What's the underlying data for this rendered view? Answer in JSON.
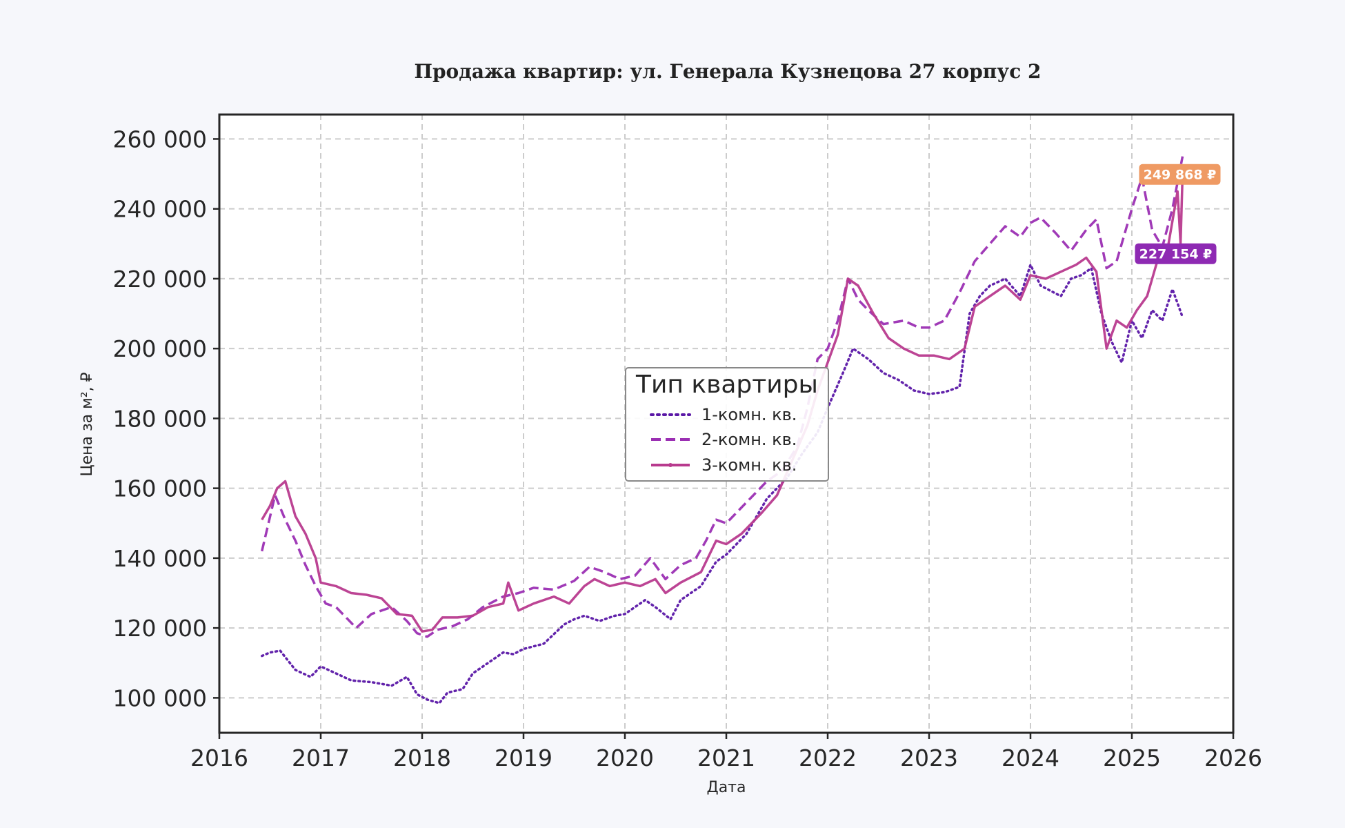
{
  "chart_data": {
    "type": "line",
    "title": "Продажа квартир: ул. Генерала Кузнецова 27 корпус 2",
    "xlabel": "Дата",
    "ylabel": "Цена за м², ₽",
    "xlim": [
      2016.0,
      2026.0
    ],
    "ylim": [
      90000,
      267000
    ],
    "x_ticks": [
      "2016",
      "2017",
      "2018",
      "2019",
      "2020",
      "2021",
      "2022",
      "2023",
      "2024",
      "2025",
      "2026"
    ],
    "y_ticks": [
      100000,
      120000,
      140000,
      160000,
      180000,
      200000,
      220000,
      240000,
      260000
    ],
    "y_tick_labels": [
      "100 000",
      "120 000",
      "140 000",
      "160 000",
      "180 000",
      "200 000",
      "220 000",
      "240 000",
      "260 000"
    ],
    "grid": true,
    "legend": {
      "title": "Тип квартиры",
      "position": "center",
      "entries": [
        "1-комн. кв.",
        "2-комн. кв.",
        "3-комн. кв."
      ]
    },
    "series": [
      {
        "name": "1-комн. кв.",
        "color": "#5a17a6",
        "style": "dotted",
        "x": [
          2016.42,
          2016.5,
          2016.6,
          2016.75,
          2016.9,
          2017.0,
          2017.15,
          2017.3,
          2017.5,
          2017.7,
          2017.85,
          2017.95,
          2018.05,
          2018.17,
          2018.25,
          2018.4,
          2018.5,
          2018.65,
          2018.8,
          2018.9,
          2019.0,
          2019.2,
          2019.4,
          2019.5,
          2019.6,
          2019.75,
          2019.9,
          2020.0,
          2020.2,
          2020.3,
          2020.45,
          2020.55,
          2020.75,
          2020.9,
          2021.0,
          2021.2,
          2021.4,
          2021.6,
          2021.75,
          2021.9,
          2022.0,
          2022.15,
          2022.25,
          2022.4,
          2022.55,
          2022.7,
          2022.85,
          2023.0,
          2023.15,
          2023.3,
          2023.4,
          2023.5,
          2023.6,
          2023.75,
          2023.9,
          2024.0,
          2024.1,
          2024.3,
          2024.4,
          2024.5,
          2024.6,
          2024.7,
          2024.8,
          2024.9,
          2025.0,
          2025.1,
          2025.2,
          2025.3,
          2025.4,
          2025.5
        ],
        "y": [
          112000,
          113000,
          113500,
          108000,
          106000,
          109000,
          107000,
          105000,
          104500,
          103500,
          106000,
          101000,
          99500,
          98500,
          101500,
          102500,
          107000,
          110000,
          113000,
          112500,
          114000,
          115500,
          121000,
          122500,
          123500,
          122000,
          123500,
          124000,
          128000,
          126000,
          122500,
          128000,
          132000,
          139000,
          141000,
          147000,
          157000,
          163000,
          170000,
          176000,
          183000,
          193000,
          200000,
          197000,
          193000,
          191000,
          188000,
          187000,
          187500,
          189000,
          210000,
          215000,
          218000,
          220000,
          215000,
          224000,
          218000,
          215000,
          220000,
          221000,
          223000,
          210000,
          202000,
          196000,
          208000,
          203000,
          211000,
          208000,
          217000,
          209000
        ]
      },
      {
        "name": "2-комн. кв.",
        "color": "#9b2fb3",
        "style": "dashed",
        "x": [
          2016.42,
          2016.55,
          2016.65,
          2016.75,
          2016.85,
          2016.95,
          2017.05,
          2017.15,
          2017.25,
          2017.35,
          2017.5,
          2017.7,
          2017.85,
          2017.95,
          2018.05,
          2018.15,
          2018.3,
          2018.45,
          2018.6,
          2018.8,
          2018.95,
          2019.1,
          2019.3,
          2019.5,
          2019.65,
          2019.8,
          2019.95,
          2020.1,
          2020.25,
          2020.4,
          2020.55,
          2020.7,
          2020.8,
          2020.9,
          2021.0,
          2021.1,
          2021.2,
          2021.4,
          2021.55,
          2021.7,
          2021.8,
          2021.9,
          2022.0,
          2022.1,
          2022.2,
          2022.3,
          2022.4,
          2022.55,
          2022.75,
          2022.9,
          2023.0,
          2023.15,
          2023.3,
          2023.45,
          2023.6,
          2023.75,
          2023.9,
          2024.0,
          2024.1,
          2024.25,
          2024.4,
          2024.55,
          2024.65,
          2024.75,
          2024.85,
          2025.0,
          2025.1,
          2025.2,
          2025.3,
          2025.4,
          2025.5
        ],
        "y": [
          142000,
          158000,
          151000,
          145000,
          138000,
          132000,
          127000,
          126000,
          123000,
          120000,
          124000,
          126000,
          122000,
          118500,
          117500,
          119500,
          120500,
          122500,
          126000,
          129000,
          130000,
          131500,
          131000,
          133500,
          137500,
          136000,
          134000,
          135000,
          140000,
          134000,
          138000,
          140000,
          145000,
          151000,
          150000,
          153000,
          156000,
          162000,
          165000,
          172000,
          183000,
          197000,
          200000,
          208000,
          220000,
          214000,
          211000,
          207000,
          208000,
          206000,
          206000,
          208000,
          216000,
          225000,
          230000,
          235000,
          232000,
          236000,
          237500,
          233000,
          228000,
          234000,
          237000,
          223000,
          225000,
          240000,
          249000,
          234000,
          229000,
          240000,
          255000
        ]
      },
      {
        "name": "3-комн. кв.",
        "color": "#b83a8e",
        "style": "solid",
        "x": [
          2016.42,
          2016.5,
          2016.57,
          2016.65,
          2016.75,
          2016.85,
          2016.95,
          2017.0,
          2017.15,
          2017.3,
          2017.45,
          2017.6,
          2017.75,
          2017.9,
          2018.0,
          2018.1,
          2018.2,
          2018.35,
          2018.5,
          2018.65,
          2018.8,
          2018.85,
          2018.95,
          2019.1,
          2019.3,
          2019.45,
          2019.6,
          2019.7,
          2019.85,
          2020.0,
          2020.15,
          2020.3,
          2020.4,
          2020.55,
          2020.75,
          2020.9,
          2021.0,
          2021.15,
          2021.35,
          2021.5,
          2021.65,
          2021.8,
          2021.9,
          2022.0,
          2022.1,
          2022.2,
          2022.3,
          2022.45,
          2022.6,
          2022.75,
          2022.9,
          2023.05,
          2023.2,
          2023.35,
          2023.45,
          2023.6,
          2023.75,
          2023.9,
          2024.0,
          2024.15,
          2024.3,
          2024.45,
          2024.55,
          2024.65,
          2024.75,
          2024.85,
          2024.95,
          2025.05,
          2025.15,
          2025.25,
          2025.35,
          2025.45,
          2025.48,
          2025.5
        ],
        "y": [
          151000,
          155000,
          160000,
          162000,
          152000,
          147000,
          140000,
          133000,
          132000,
          130000,
          129500,
          128500,
          124000,
          123500,
          119000,
          119500,
          123000,
          123000,
          123500,
          126000,
          127000,
          133000,
          125000,
          127000,
          129000,
          127000,
          132000,
          134000,
          132000,
          133000,
          132000,
          134000,
          130000,
          133000,
          136000,
          145000,
          144000,
          147000,
          153000,
          158000,
          168000,
          178000,
          188000,
          196000,
          204000,
          220000,
          218000,
          210000,
          203000,
          200000,
          198000,
          198000,
          197000,
          200000,
          212000,
          215000,
          218000,
          214000,
          221000,
          220000,
          222000,
          224000,
          226000,
          222000,
          200000,
          208000,
          206000,
          211000,
          215000,
          225000,
          228000,
          245000,
          230000,
          249868
        ]
      }
    ],
    "badges": [
      {
        "text": "249 868 ₽",
        "value": 249868,
        "color": "#ef9a63"
      },
      {
        "text": "227 154 ₽",
        "value": 227154,
        "color": "#8e2ab3"
      }
    ]
  }
}
